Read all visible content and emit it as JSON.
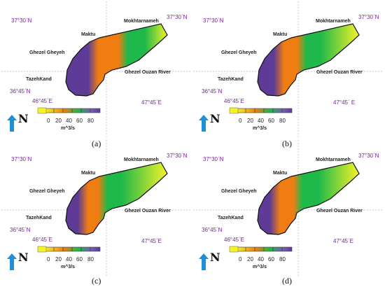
{
  "colors": {
    "purple": "#5d3b96",
    "orange": "#f07d12",
    "green": "#1fb84a",
    "yellow": "#f5f22a",
    "coord_text": "#7a1ea8",
    "arrow": "#1e90d8"
  },
  "icons": {
    "north_arrow": "up-arrow-icon"
  },
  "panels": [
    {
      "caption": "(a)",
      "labels": {
        "lat_left": "37°30΄N",
        "lat_right": "37°30΄N",
        "mokhtarnameh": "Mokhtarnameh",
        "maktu": "Maktu",
        "ghezel_gheyeh": "Ghezel Gheyeh",
        "ghezel_ouzan_river": "Ghezel Ouzan River",
        "tazehkand": "TazehKand",
        "lat_bottom": "36°45΄N",
        "lon_left": "46°45΄E",
        "lon_right": "47°45΄E",
        "north": "N",
        "unit": "m^3/s",
        "ticks": [
          "0",
          "20",
          "40",
          "60",
          "80"
        ]
      },
      "flow_gradient": {
        "purple_end": 0.28,
        "orange_end": 0.55,
        "green_end": 0.78
      }
    },
    {
      "caption": "(b)",
      "labels": {
        "lat_left": "37°30΄N",
        "lat_right": "37°30΄N",
        "mokhtarnameh": "Mokhtarnameh",
        "maktu": "Maktu",
        "ghezel_gheyeh": "Ghezel Gheyeh",
        "ghezel_ouzan_river": "Ghezel Ouzan River",
        "tazehkand": "TazehKand",
        "lat_bottom": "36°45΄N",
        "lon_left": "46°45΄E",
        "lon_right": "47°45΄ E",
        "north": "N",
        "unit": "m^3/s",
        "ticks": [
          "0",
          "20",
          "40",
          "60",
          "80"
        ]
      },
      "flow_gradient": {
        "purple_end": 0.22,
        "orange_end": 0.42,
        "green_end": 0.62
      }
    },
    {
      "caption": "(c)",
      "labels": {
        "lat_left": "37°30΄N",
        "lat_right": "37°30΄N",
        "mokhtarnameh": "Mokhtarnameh",
        "maktu": "Maktu",
        "ghezel_gheyeh": "Ghezel Gheyeh",
        "ghezel_ouzan_river": "Ghezel Ouzan River",
        "tazehkand": "TazehKand",
        "lat_bottom": "36°45΄N",
        "lon_left": "46°45΄E",
        "lon_right": "47°45΄E",
        "north": "N",
        "unit": "m^3/s",
        "ticks": [
          "0",
          "20",
          "40",
          "60",
          "80"
        ]
      },
      "flow_gradient": {
        "purple_end": 0.18,
        "orange_end": 0.35,
        "green_end": 0.55
      }
    },
    {
      "caption": "(d)",
      "labels": {
        "lat_left": "37°30΄N",
        "lat_right": "37°30΄N",
        "mokhtarnameh": "Mokhtarnameh",
        "maktu": "Maktu",
        "ghezel_gheyeh": "Ghezel Gheyeh",
        "ghezel_ouzan_river": "Ghezel Ouzan River",
        "tazehkand": "TazehKand",
        "lat_bottom": "36°45΄N",
        "lon_left": "46°45΄E",
        "lon_right": "47°45΄E",
        "north": "N",
        "unit": "m^3/s",
        "ticks": [
          "0",
          "20",
          "40",
          "60",
          "80"
        ]
      },
      "flow_gradient": {
        "purple_end": 0.18,
        "orange_end": 0.38,
        "green_end": 0.6
      }
    }
  ]
}
